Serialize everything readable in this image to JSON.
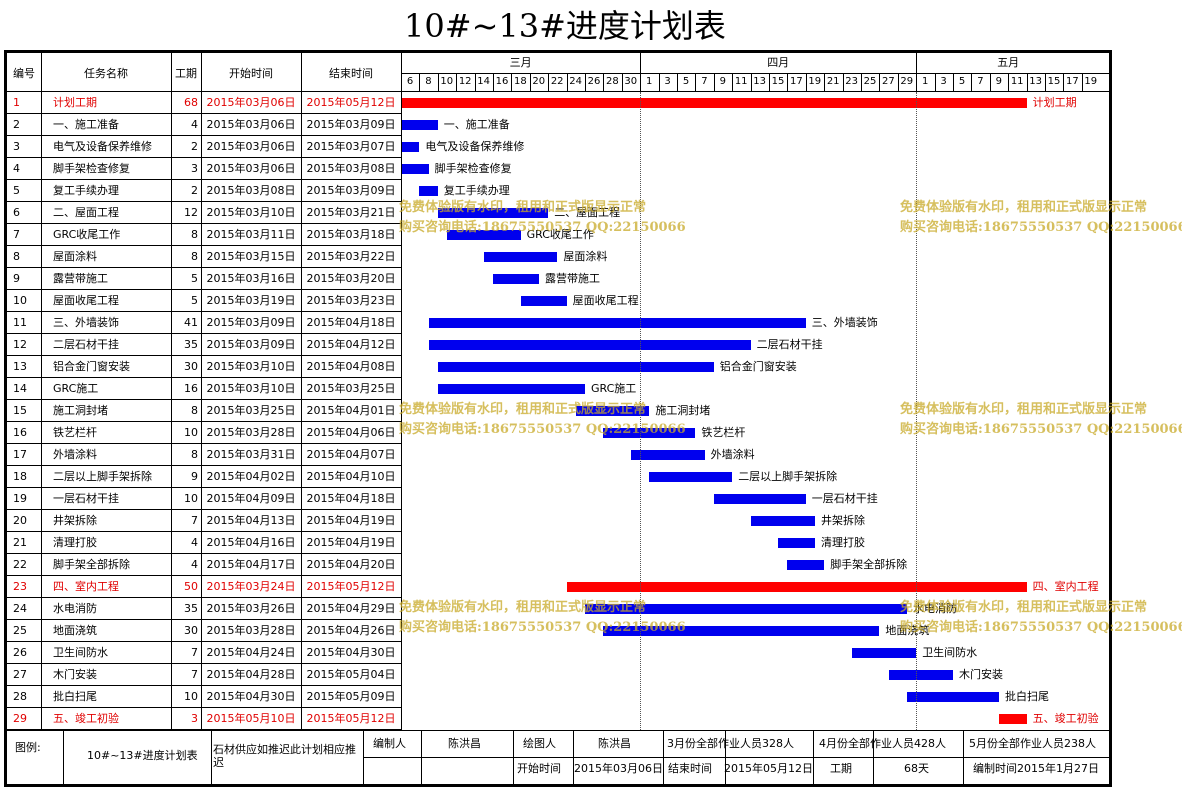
{
  "title": "10#~13#进度计划表",
  "headers": {
    "id": "编号",
    "name": "任务名称",
    "duration": "工期",
    "start": "开始时间",
    "end": "结束时间"
  },
  "months": [
    {
      "label": "三月",
      "days": [
        "6",
        "8",
        "10",
        "12",
        "14",
        "16",
        "18",
        "20",
        "22",
        "24",
        "26",
        "28",
        "30"
      ]
    },
    {
      "label": "四月",
      "days": [
        "1",
        "3",
        "5",
        "7",
        "9",
        "11",
        "13",
        "15",
        "17",
        "19",
        "21",
        "23",
        "25",
        "27",
        "29"
      ]
    },
    {
      "label": "五月",
      "days": [
        "1",
        "3",
        "5",
        "7",
        "9",
        "11",
        "13",
        "15",
        "17",
        "19"
      ]
    }
  ],
  "tasks": [
    {
      "id": "1",
      "name": "计划工期",
      "duration": "68",
      "start": "2015年03月06日",
      "end": "2015年05月12日",
      "highlight": true
    },
    {
      "id": "2",
      "name": "一、施工准备",
      "duration": "4",
      "start": "2015年03月06日",
      "end": "2015年03月09日",
      "highlight": false
    },
    {
      "id": "3",
      "name": "电气及设备保养维修",
      "duration": "2",
      "start": "2015年03月06日",
      "end": "2015年03月07日",
      "highlight": false
    },
    {
      "id": "4",
      "name": "脚手架检查修复",
      "duration": "3",
      "start": "2015年03月06日",
      "end": "2015年03月08日",
      "highlight": false
    },
    {
      "id": "5",
      "name": "复工手续办理",
      "duration": "2",
      "start": "2015年03月08日",
      "end": "2015年03月09日",
      "highlight": false
    },
    {
      "id": "6",
      "name": "二、屋面工程",
      "duration": "12",
      "start": "2015年03月10日",
      "end": "2015年03月21日",
      "highlight": false
    },
    {
      "id": "7",
      "name": "GRC收尾工作",
      "duration": "8",
      "start": "2015年03月11日",
      "end": "2015年03月18日",
      "highlight": false
    },
    {
      "id": "8",
      "name": "屋面涂料",
      "duration": "8",
      "start": "2015年03月15日",
      "end": "2015年03月22日",
      "highlight": false
    },
    {
      "id": "9",
      "name": "露营带施工",
      "duration": "5",
      "start": "2015年03月16日",
      "end": "2015年03月20日",
      "highlight": false
    },
    {
      "id": "10",
      "name": "屋面收尾工程",
      "duration": "5",
      "start": "2015年03月19日",
      "end": "2015年03月23日",
      "highlight": false
    },
    {
      "id": "11",
      "name": "三、外墙装饰",
      "duration": "41",
      "start": "2015年03月09日",
      "end": "2015年04月18日",
      "highlight": false
    },
    {
      "id": "12",
      "name": "二层石材干挂",
      "duration": "35",
      "start": "2015年03月09日",
      "end": "2015年04月12日",
      "highlight": false
    },
    {
      "id": "13",
      "name": "铝合金门窗安装",
      "duration": "30",
      "start": "2015年03月10日",
      "end": "2015年04月08日",
      "highlight": false
    },
    {
      "id": "14",
      "name": "GRC施工",
      "duration": "16",
      "start": "2015年03月10日",
      "end": "2015年03月25日",
      "highlight": false
    },
    {
      "id": "15",
      "name": "施工洞封堵",
      "duration": "8",
      "start": "2015年03月25日",
      "end": "2015年04月01日",
      "highlight": false
    },
    {
      "id": "16",
      "name": "铁艺栏杆",
      "duration": "10",
      "start": "2015年03月28日",
      "end": "2015年04月06日",
      "highlight": false
    },
    {
      "id": "17",
      "name": "外墙涂料",
      "duration": "8",
      "start": "2015年03月31日",
      "end": "2015年04月07日",
      "highlight": false
    },
    {
      "id": "18",
      "name": "二层以上脚手架拆除",
      "duration": "9",
      "start": "2015年04月02日",
      "end": "2015年04月10日",
      "highlight": false
    },
    {
      "id": "19",
      "name": "一层石材干挂",
      "duration": "10",
      "start": "2015年04月09日",
      "end": "2015年04月18日",
      "highlight": false
    },
    {
      "id": "20",
      "name": "井架拆除",
      "duration": "7",
      "start": "2015年04月13日",
      "end": "2015年04月19日",
      "highlight": false
    },
    {
      "id": "21",
      "name": "清理打胶",
      "duration": "4",
      "start": "2015年04月16日",
      "end": "2015年04月19日",
      "highlight": false
    },
    {
      "id": "22",
      "name": "脚手架全部拆除",
      "duration": "4",
      "start": "2015年04月17日",
      "end": "2015年04月20日",
      "highlight": false
    },
    {
      "id": "23",
      "name": "四、室内工程",
      "duration": "50",
      "start": "2015年03月24日",
      "end": "2015年05月12日",
      "highlight": true
    },
    {
      "id": "24",
      "name": "水电消防",
      "duration": "35",
      "start": "2015年03月26日",
      "end": "2015年04月29日",
      "highlight": false
    },
    {
      "id": "25",
      "name": "地面浇筑",
      "duration": "30",
      "start": "2015年03月28日",
      "end": "2015年04月26日",
      "highlight": false
    },
    {
      "id": "26",
      "name": "卫生间防水",
      "duration": "7",
      "start": "2015年04月24日",
      "end": "2015年04月30日",
      "highlight": false
    },
    {
      "id": "27",
      "name": "木门安装",
      "duration": "7",
      "start": "2015年04月28日",
      "end": "2015年05月04日",
      "highlight": false
    },
    {
      "id": "28",
      "name": "批白扫尾",
      "duration": "10",
      "start": "2015年04月30日",
      "end": "2015年05月09日",
      "highlight": false
    },
    {
      "id": "29",
      "name": "五、竣工初验",
      "duration": "3",
      "start": "2015年05月10日",
      "end": "2015年05月12日",
      "highlight": true
    }
  ],
  "colors": {
    "normal_bar": "#0000ee",
    "highlight_bar": "#ff0000",
    "highlight_text": "#e00000"
  },
  "watermark": {
    "line1": "免费体验版有水印，租用和正式版显示正常",
    "line2": "购买咨询电话:18675550537 QQ:22150066"
  },
  "footer": {
    "legend_label": "图例:",
    "table_name": "10#~13#进度计划表",
    "note": "石材供应如推迟此计划相应推迟",
    "editor_label": "编制人",
    "editor": "陈洪昌",
    "drawer_label": "绘图人",
    "drawer": "陈洪昌",
    "staff_march": "3月份全部作业人员328人",
    "staff_april": "4月份全部作业人员428人",
    "staff_may": "5月份全部作业人员238人",
    "start_label": "开始时间",
    "start_value": "2015年03月06日",
    "end_label": "结束时间",
    "end_value": "2015年05月12日",
    "duration_label": "工期",
    "duration_value": "68天",
    "compiled": "编制时间2015年1月27日"
  }
}
